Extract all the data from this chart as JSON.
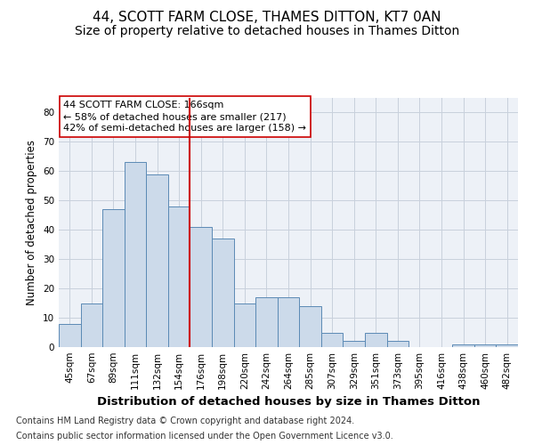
{
  "title": "44, SCOTT FARM CLOSE, THAMES DITTON, KT7 0AN",
  "subtitle": "Size of property relative to detached houses in Thames Ditton",
  "xlabel": "Distribution of detached houses by size in Thames Ditton",
  "ylabel": "Number of detached properties",
  "categories": [
    "45sqm",
    "67sqm",
    "89sqm",
    "111sqm",
    "132sqm",
    "154sqm",
    "176sqm",
    "198sqm",
    "220sqm",
    "242sqm",
    "264sqm",
    "285sqm",
    "307sqm",
    "329sqm",
    "351sqm",
    "373sqm",
    "395sqm",
    "416sqm",
    "438sqm",
    "460sqm",
    "482sqm"
  ],
  "values": [
    8,
    15,
    47,
    63,
    59,
    48,
    41,
    37,
    15,
    17,
    17,
    14,
    5,
    2,
    5,
    2,
    0,
    0,
    1,
    1,
    1
  ],
  "bar_color": "#ccdaea",
  "bar_edge_color": "#5b8ab5",
  "vline_x": 6,
  "vline_color": "#cc0000",
  "annotation_text": "44 SCOTT FARM CLOSE: 166sqm\n← 58% of detached houses are smaller (217)\n42% of semi-detached houses are larger (158) →",
  "annotation_box_color": "#ffffff",
  "annotation_box_edge_color": "#cc0000",
  "ylim": [
    0,
    85
  ],
  "yticks": [
    0,
    10,
    20,
    30,
    40,
    50,
    60,
    70,
    80
  ],
  "footer1": "Contains HM Land Registry data © Crown copyright and database right 2024.",
  "footer2": "Contains public sector information licensed under the Open Government Licence v3.0.",
  "grid_color": "#c8d0dc",
  "background_color": "#edf1f7",
  "title_fontsize": 11,
  "subtitle_fontsize": 10,
  "xlabel_fontsize": 9.5,
  "ylabel_fontsize": 8.5,
  "tick_fontsize": 7.5,
  "annotation_fontsize": 8,
  "footer_fontsize": 7
}
